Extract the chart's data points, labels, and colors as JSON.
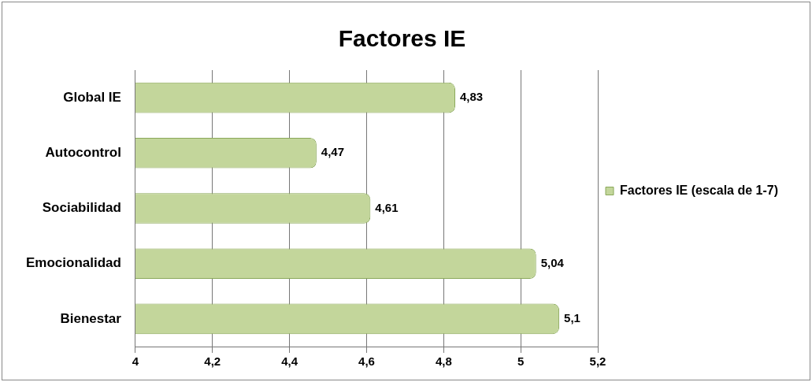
{
  "chart_data": {
    "type": "bar",
    "orientation": "horizontal",
    "title": "Factores IE",
    "categories": [
      "Global IE",
      "Autocontrol",
      "Sociabilidad",
      "Emocionalidad",
      "Bienestar"
    ],
    "series": [
      {
        "name": "Factores IE (escala de 1-7)",
        "color": "#c3d69b",
        "values": [
          4.83,
          4.47,
          4.61,
          5.04,
          5.1
        ],
        "value_labels": [
          "4,83",
          "4,47",
          "4,61",
          "5,04",
          "5,1"
        ]
      }
    ],
    "xlim": [
      4,
      5.2
    ],
    "xticks": [
      {
        "value": 4,
        "label": "4"
      },
      {
        "value": 4.2,
        "label": "4,2"
      },
      {
        "value": 4.4,
        "label": "4,4"
      },
      {
        "value": 4.6,
        "label": "4,6"
      },
      {
        "value": 4.8,
        "label": "4,8"
      },
      {
        "value": 5,
        "label": "5"
      },
      {
        "value": 5.2,
        "label": "5,2"
      }
    ],
    "grid": "x",
    "legend": "right"
  }
}
